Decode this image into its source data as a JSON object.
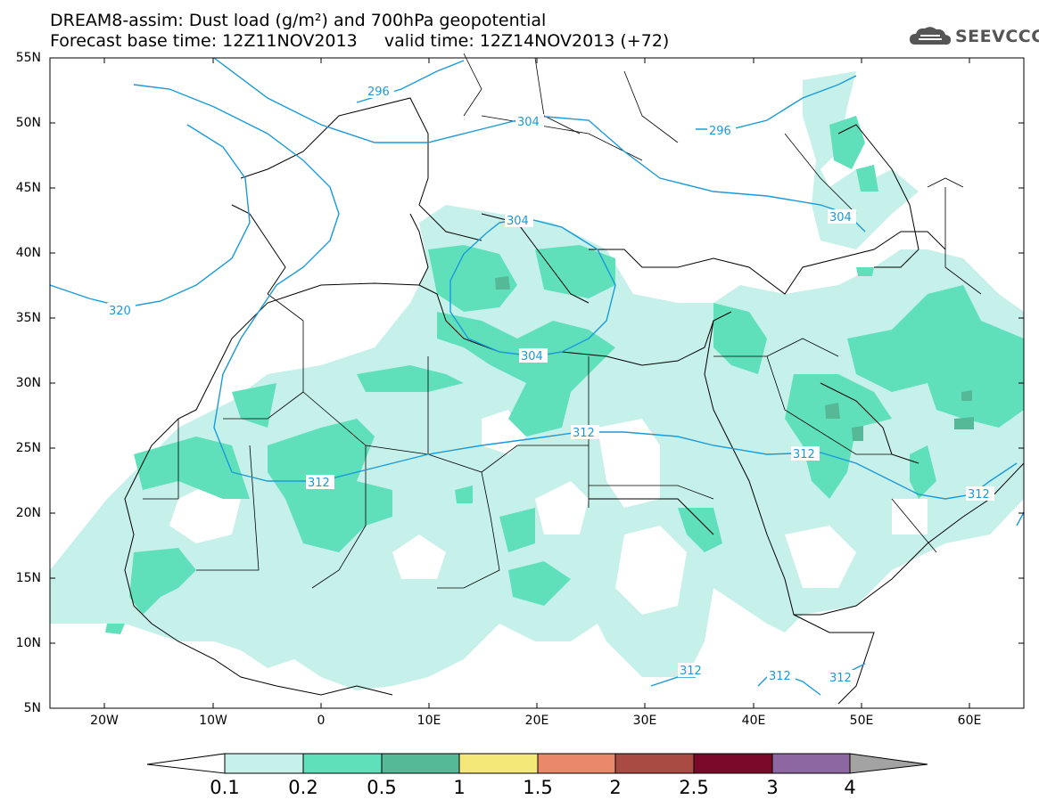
{
  "title": {
    "line1": "DREAM8-assim: Dust load (g/m²) and 700hPa geopotential",
    "line2": "Forecast base time: 12Z11NOV2013     valid time: 12Z14NOV2013 (+72)"
  },
  "logo": {
    "text": "SEEVCCC",
    "icon": "cloud-icon"
  },
  "map": {
    "lat_labels": [
      "55N",
      "50N",
      "45N",
      "40N",
      "35N",
      "30N",
      "25N",
      "20N",
      "15N",
      "10N",
      "5N"
    ],
    "lon_labels": [
      "20W",
      "10W",
      "0",
      "10E",
      "20E",
      "30E",
      "40E",
      "50E",
      "60E"
    ],
    "contour_labels": [
      "296",
      "304",
      "296",
      "304",
      "304",
      "304",
      "320",
      "312",
      "312",
      "312",
      "312",
      "312",
      "312",
      "312"
    ]
  },
  "colorbar": {
    "labels": [
      "0.1",
      "0.2",
      "0.5",
      "1",
      "1.5",
      "2",
      "2.5",
      "3",
      "4"
    ],
    "colors": [
      "#c6f1ea",
      "#5fe0bb",
      "#55b896",
      "#f3e878",
      "#e9896a",
      "#a94a43",
      "#7b0a2a",
      "#8d67a1",
      "#a3a3a3"
    ]
  },
  "colors": {
    "dust_light": "#c6f1ea",
    "dust_medium": "#5fe0bb",
    "dust_dark": "#55b896",
    "contour": "#1a9ad9",
    "coast": "#000000"
  }
}
